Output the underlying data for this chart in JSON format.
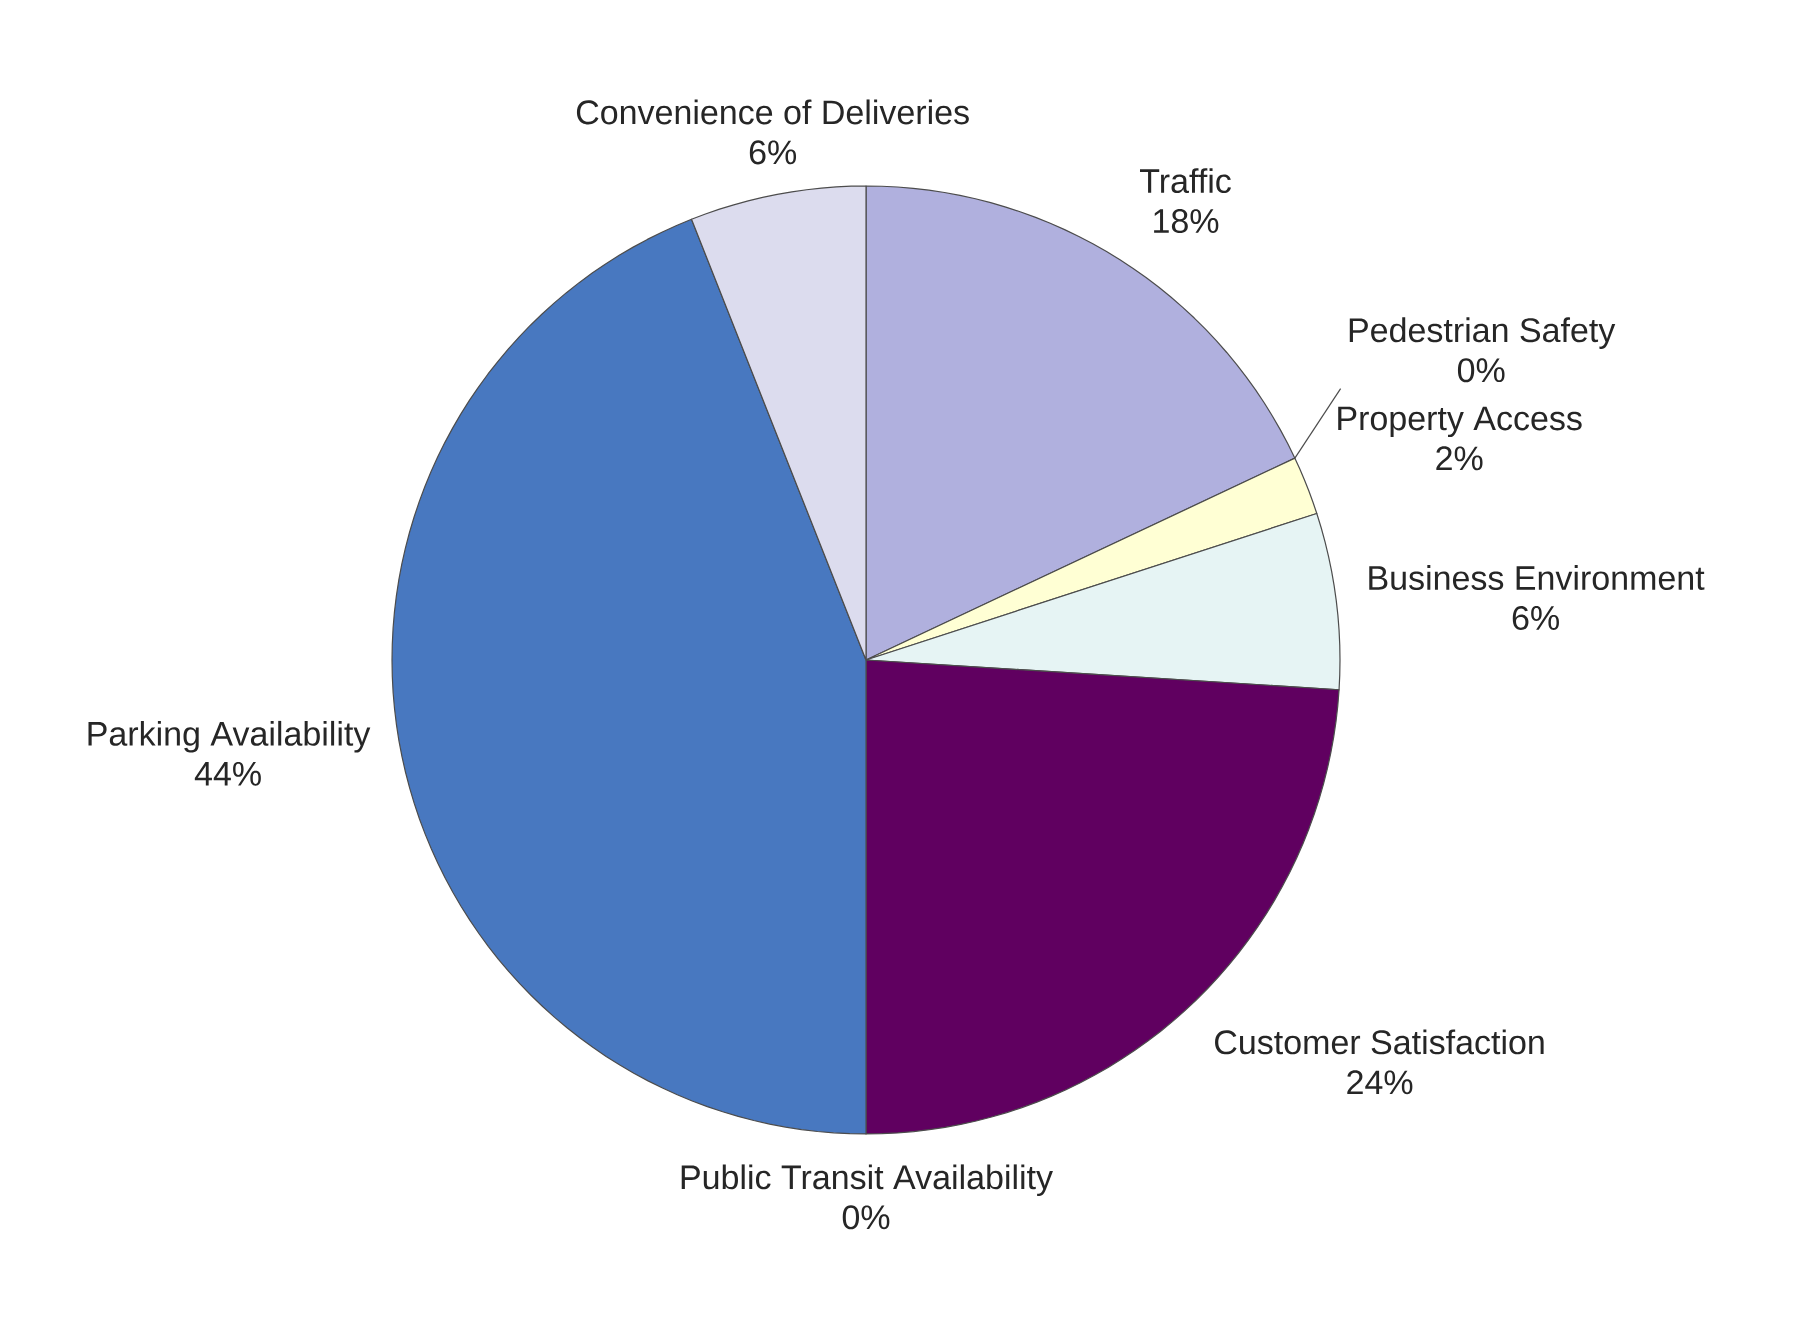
{
  "chart_data": {
    "type": "pie",
    "categories": [
      "Traffic",
      "Pedestrian Safety",
      "Property Access",
      "Business Environment",
      "Customer Satisfaction",
      "Public Transit Availability",
      "Parking Availability",
      "Convenience of Deliveries"
    ],
    "values": [
      18,
      0,
      2,
      6,
      24,
      0,
      44,
      6
    ],
    "value_labels": [
      "18%",
      "0%",
      "2%",
      "6%",
      "24%",
      "0%",
      "44%",
      "6%"
    ],
    "colors": [
      "#b0b0de",
      "#9999cc",
      "#ffffd4",
      "#e6f4f4",
      "#600060",
      "#8fb4e3",
      "#4878c0",
      "#dcdcee"
    ]
  }
}
